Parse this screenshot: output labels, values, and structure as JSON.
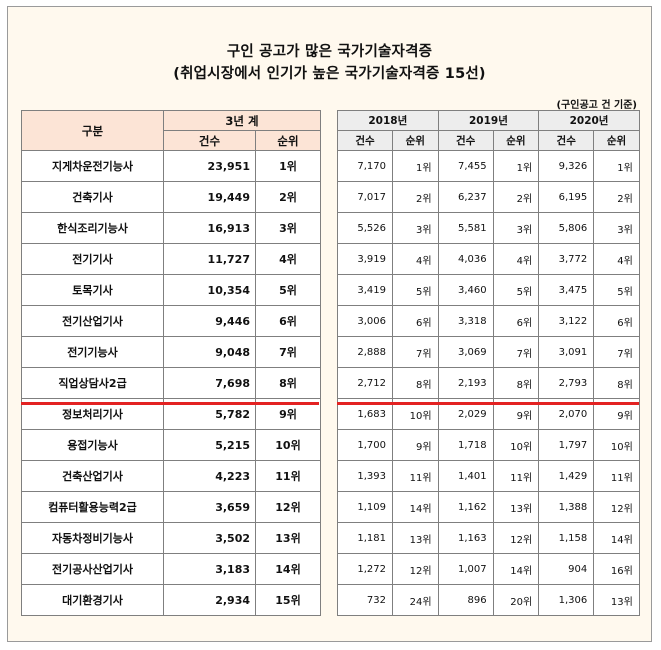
{
  "title": {
    "line1": "구인 공고가 많은 국가기술자격증",
    "line2": "(취업시장에서 인기가 높은 국가기술자격증 15선)"
  },
  "unit_note": "(구인공고 건 기준)",
  "headers": {
    "category": "구분",
    "total_group": "3년 계",
    "count": "건수",
    "rank": "순위",
    "years": [
      "2018년",
      "2019년",
      "2020년"
    ]
  },
  "rows": [
    {
      "name": "지게차운전기능사",
      "total": "23,951",
      "total_rank": "1위",
      "y2018": "7,170",
      "r2018": "1위",
      "y2019": "7,455",
      "r2019": "1위",
      "y2020": "9,326",
      "r2020": "1위"
    },
    {
      "name": "건축기사",
      "total": "19,449",
      "total_rank": "2위",
      "y2018": "7,017",
      "r2018": "2위",
      "y2019": "6,237",
      "r2019": "2위",
      "y2020": "6,195",
      "r2020": "2위"
    },
    {
      "name": "한식조리기능사",
      "total": "16,913",
      "total_rank": "3위",
      "y2018": "5,526",
      "r2018": "3위",
      "y2019": "5,581",
      "r2019": "3위",
      "y2020": "5,806",
      "r2020": "3위"
    },
    {
      "name": "전기기사",
      "total": "11,727",
      "total_rank": "4위",
      "y2018": "3,919",
      "r2018": "4위",
      "y2019": "4,036",
      "r2019": "4위",
      "y2020": "3,772",
      "r2020": "4위"
    },
    {
      "name": "토목기사",
      "total": "10,354",
      "total_rank": "5위",
      "y2018": "3,419",
      "r2018": "5위",
      "y2019": "3,460",
      "r2019": "5위",
      "y2020": "3,475",
      "r2020": "5위"
    },
    {
      "name": "전기산업기사",
      "total": "9,446",
      "total_rank": "6위",
      "y2018": "3,006",
      "r2018": "6위",
      "y2019": "3,318",
      "r2019": "6위",
      "y2020": "3,122",
      "r2020": "6위"
    },
    {
      "name": "전기기능사",
      "total": "9,048",
      "total_rank": "7위",
      "y2018": "2,888",
      "r2018": "7위",
      "y2019": "3,069",
      "r2019": "7위",
      "y2020": "3,091",
      "r2020": "7위"
    },
    {
      "name": "직업상담사2급",
      "total": "7,698",
      "total_rank": "8위",
      "y2018": "2,712",
      "r2018": "8위",
      "y2019": "2,193",
      "r2019": "8위",
      "y2020": "2,793",
      "r2020": "8위"
    },
    {
      "name": "정보처리기사",
      "total": "5,782",
      "total_rank": "9위",
      "y2018": "1,683",
      "r2018": "10위",
      "y2019": "2,029",
      "r2019": "9위",
      "y2020": "2,070",
      "r2020": "9위"
    },
    {
      "name": "용접기능사",
      "total": "5,215",
      "total_rank": "10위",
      "y2018": "1,700",
      "r2018": "9위",
      "y2019": "1,718",
      "r2019": "10위",
      "y2020": "1,797",
      "r2020": "10위"
    },
    {
      "name": "건축산업기사",
      "total": "4,223",
      "total_rank": "11위",
      "y2018": "1,393",
      "r2018": "11위",
      "y2019": "1,401",
      "r2019": "11위",
      "y2020": "1,429",
      "r2020": "11위"
    },
    {
      "name": "컴퓨터활용능력2급",
      "total": "3,659",
      "total_rank": "12위",
      "y2018": "1,109",
      "r2018": "14위",
      "y2019": "1,162",
      "r2019": "13위",
      "y2020": "1,388",
      "r2020": "12위"
    },
    {
      "name": "자동차정비기능사",
      "total": "3,502",
      "total_rank": "13위",
      "y2018": "1,181",
      "r2018": "13위",
      "y2019": "1,163",
      "r2019": "12위",
      "y2020": "1,158",
      "r2020": "14위"
    },
    {
      "name": "전기공사산업기사",
      "total": "3,183",
      "total_rank": "14위",
      "y2018": "1,272",
      "r2018": "12위",
      "y2019": "1,007",
      "r2019": "14위",
      "y2020": "904",
      "r2020": "16위"
    },
    {
      "name": "대기환경기사",
      "total": "2,934",
      "total_rank": "15위",
      "y2018": "732",
      "r2018": "24위",
      "y2019": "896",
      "r2019": "20위",
      "y2020": "1,306",
      "r2020": "13위"
    }
  ],
  "colors": {
    "background": "#fff9ee",
    "left_header": "#fce4d6",
    "right_header": "#ededed",
    "divider": "#e32222"
  }
}
